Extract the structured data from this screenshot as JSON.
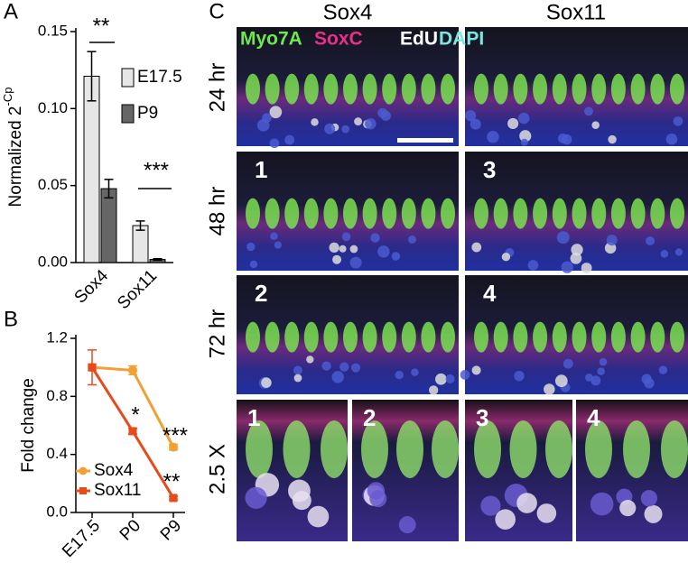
{
  "chart_data": [
    {
      "type": "bar",
      "panel": "A",
      "y_label": "Normalized 2",
      "y_label_superscript": "-Cp",
      "categories": [
        "Sox4",
        "Sox11"
      ],
      "series": [
        {
          "name": "E17.5",
          "color": "#e6e6e6",
          "values": [
            0.121,
            0.024
          ],
          "errors": [
            0.016,
            0.003
          ]
        },
        {
          "name": "P9",
          "color": "#666666",
          "values": [
            0.048,
            0.002
          ],
          "errors": [
            0.006,
            0.0005
          ]
        }
      ],
      "ylim": [
        0,
        0.15
      ],
      "yticks": [
        {
          "value": 0,
          "label": "0.00"
        },
        0.05,
        {
          "value": 0.1,
          "label": "0.10"
        },
        0.15
      ],
      "annotations": [
        "**",
        "***"
      ]
    },
    {
      "type": "line",
      "panel": "B",
      "y_label": "Fold change",
      "categories": [
        "E17.5",
        "P0",
        "P9"
      ],
      "series": [
        {
          "name": "Sox4",
          "color": "#f2a035",
          "marker": "circle",
          "values": [
            1.0,
            0.98,
            0.45
          ],
          "errors": [
            0.02,
            0.03,
            0.02
          ]
        },
        {
          "name": "Sox11",
          "color": "#e84a1c",
          "marker": "square",
          "values": [
            1.0,
            0.56,
            0.1
          ],
          "errors": [
            0.12,
            0.02,
            0.01
          ]
        }
      ],
      "ylim": [
        0,
        1.2
      ],
      "yticks": [
        {
          "value": 0,
          "label": "0.0"
        },
        0.4,
        0.8,
        1.2
      ],
      "annotations": [
        "*",
        "***",
        "**"
      ]
    }
  ],
  "image_panel": {
    "panel": "C",
    "columns": [
      "Sox4",
      "Sox11"
    ],
    "stains": [
      {
        "name": "Myo7A",
        "color": "#6ee84e"
      },
      {
        "name": "SoxC",
        "color": "#e8308a"
      },
      {
        "name": "EdU",
        "color": "#ffffff"
      },
      {
        "name": "DAPI",
        "color": "#7ae8e0"
      }
    ],
    "rows": [
      "24 hr",
      "48 hr",
      "72 hr",
      "2.5 X"
    ],
    "tile_numbers": [
      "1",
      "3",
      "2",
      "4"
    ],
    "zoom_numbers": [
      "1",
      "2",
      "3",
      "4"
    ]
  }
}
